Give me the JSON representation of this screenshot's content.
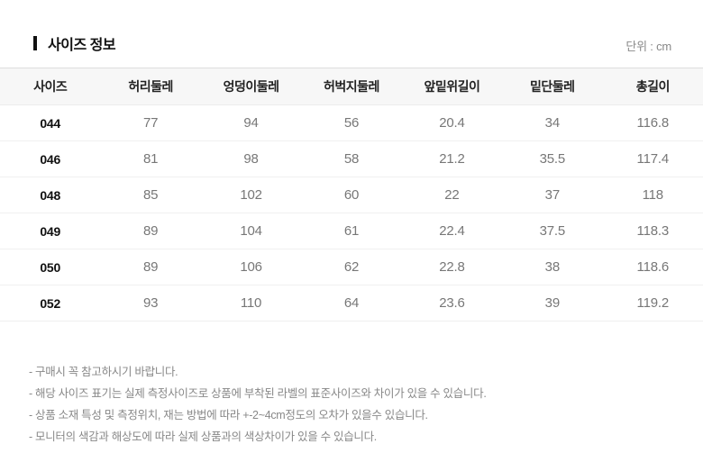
{
  "header": {
    "title": "사이즈 정보",
    "unit": "단위 : cm"
  },
  "table": {
    "columns": [
      "사이즈",
      "허리둘레",
      "엉덩이둘레",
      "허벅지둘레",
      "앞밑위길이",
      "밑단둘레",
      "총길이"
    ],
    "rows": [
      [
        "044",
        "77",
        "94",
        "56",
        "20.4",
        "34",
        "116.8"
      ],
      [
        "046",
        "81",
        "98",
        "58",
        "21.2",
        "35.5",
        "117.4"
      ],
      [
        "048",
        "85",
        "102",
        "60",
        "22",
        "37",
        "118"
      ],
      [
        "049",
        "89",
        "104",
        "61",
        "22.4",
        "37.5",
        "118.3"
      ],
      [
        "050",
        "89",
        "106",
        "62",
        "22.8",
        "38",
        "118.6"
      ],
      [
        "052",
        "93",
        "110",
        "64",
        "23.6",
        "39",
        "119.2"
      ]
    ]
  },
  "notes": [
    "- 구매시 꼭 참고하시기 바랍니다.",
    "- 해당 사이즈 표기는 실제 측정사이즈로 상품에 부착된 라벨의 표준사이즈와 차이가 있을 수 있습니다.",
    "- 상품 소재 특성 및 측정위치, 재는 방법에 따라 +-2~4cm정도의 오차가 있을수 있습니다.",
    "- 모니터의 색감과 해상도에 따라 실제 상품과의 색상차이가 있을 수 있습니다."
  ],
  "colors": {
    "header_bg": "#f7f7f7",
    "table_top_border": "#dddddd",
    "row_border": "#f0f0f0",
    "text_dark": "#111111",
    "text_gray": "#777777",
    "note_gray": "#888888"
  }
}
